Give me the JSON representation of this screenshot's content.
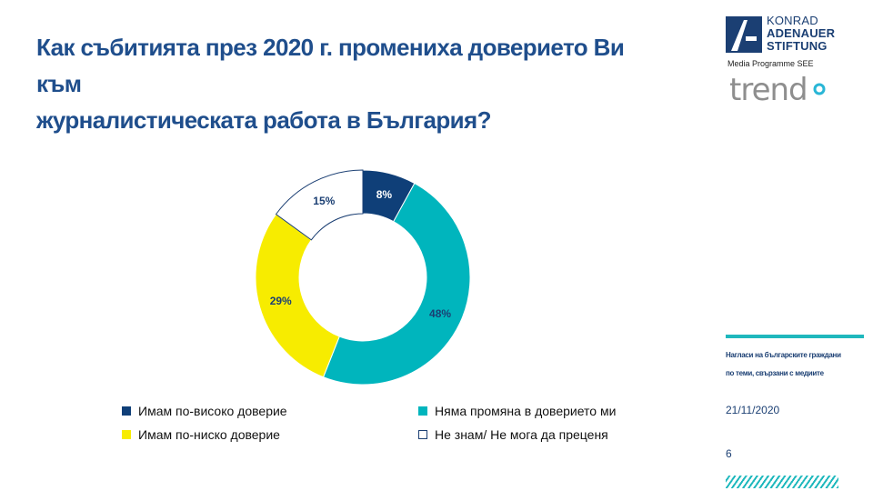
{
  "slide": {
    "title_line1": "Как събитията през 2020 г. промениха доверието Ви към",
    "title_line2": "журналистическата работа в България?",
    "page_number": "6",
    "date": "21/11/2020",
    "side_note_line1": "Нагласи на българските граждани",
    "side_note_line2": "по теми, свързани с медиите"
  },
  "logos": {
    "kas_line1": "KONRAD",
    "kas_line2": "ADENAUER",
    "kas_line3": "STIFTUNG",
    "media_programme": "Media Programme SEE",
    "trend": "trend",
    "kas_color": "#1b3f73",
    "trend_gray": "#8e8e8e",
    "trend_accent": "#29b6d6"
  },
  "chart_data": {
    "type": "pie",
    "donut": true,
    "title": "",
    "legend_position": "bottom",
    "categories": [
      "Имам по-високо доверие",
      "Няма промяна в доверието ми",
      "Имам по-ниско доверие",
      "Не знам/ Не мога да преценя"
    ],
    "values": [
      8,
      48,
      29,
      15
    ],
    "labels": [
      "8%",
      "48%",
      "29%",
      "15%"
    ],
    "colors": [
      "#0f3f78",
      "#00b5bd",
      "#f7ec00",
      "#ffffff"
    ],
    "label_colors": [
      "#ffffff",
      "#1b3f73",
      "#1b3f73",
      "#1b3f73"
    ],
    "outline_color": "#1b3f73"
  }
}
